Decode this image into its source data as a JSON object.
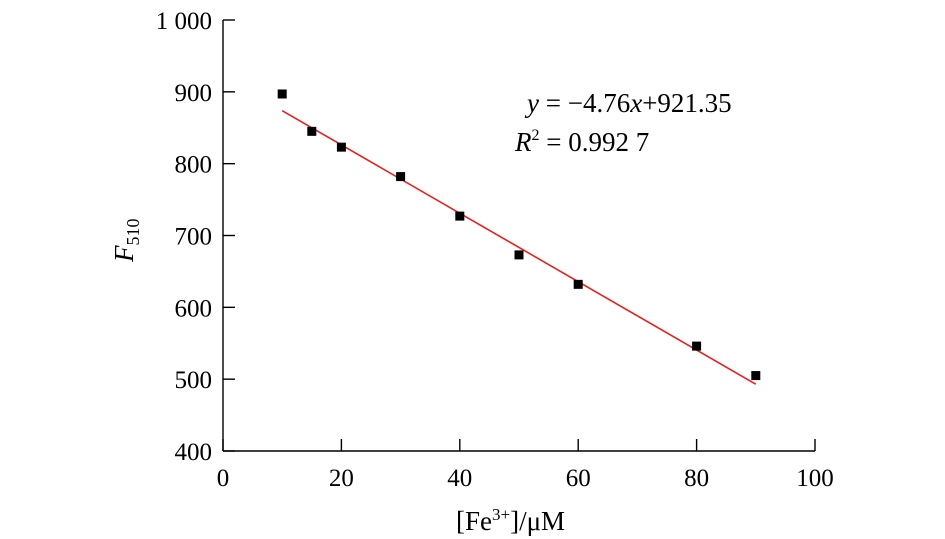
{
  "chart_data": {
    "type": "scatter",
    "x": [
      10,
      15,
      20,
      30,
      40,
      50,
      60,
      80,
      90
    ],
    "y": [
      897,
      845,
      823,
      782,
      727,
      673,
      632,
      546,
      505
    ],
    "xlim": [
      0,
      100
    ],
    "ylim": [
      400,
      1000
    ],
    "x_ticks": [
      "0",
      "20",
      "40",
      "60",
      "80",
      "100"
    ],
    "y_ticks": [
      "400",
      "500",
      "600",
      "700",
      "800",
      "900",
      "1 000"
    ],
    "xlabel": {
      "open": "[Fe",
      "sup": "3+",
      "close": "]/μM"
    },
    "ylabel": {
      "main": "F",
      "sub": "510"
    },
    "fit": {
      "slope": -4.76,
      "intercept": 921.35,
      "x_range": [
        10,
        90
      ],
      "color": "#e8201c"
    },
    "equation": {
      "y": "y",
      "eq": " = −4.76",
      "x": "x",
      "rest": "+921.35"
    },
    "r_squared": {
      "r": "R",
      "sup": "2",
      "rest": " = 0.992 7"
    },
    "marker_color": "#000000",
    "grid": false
  }
}
